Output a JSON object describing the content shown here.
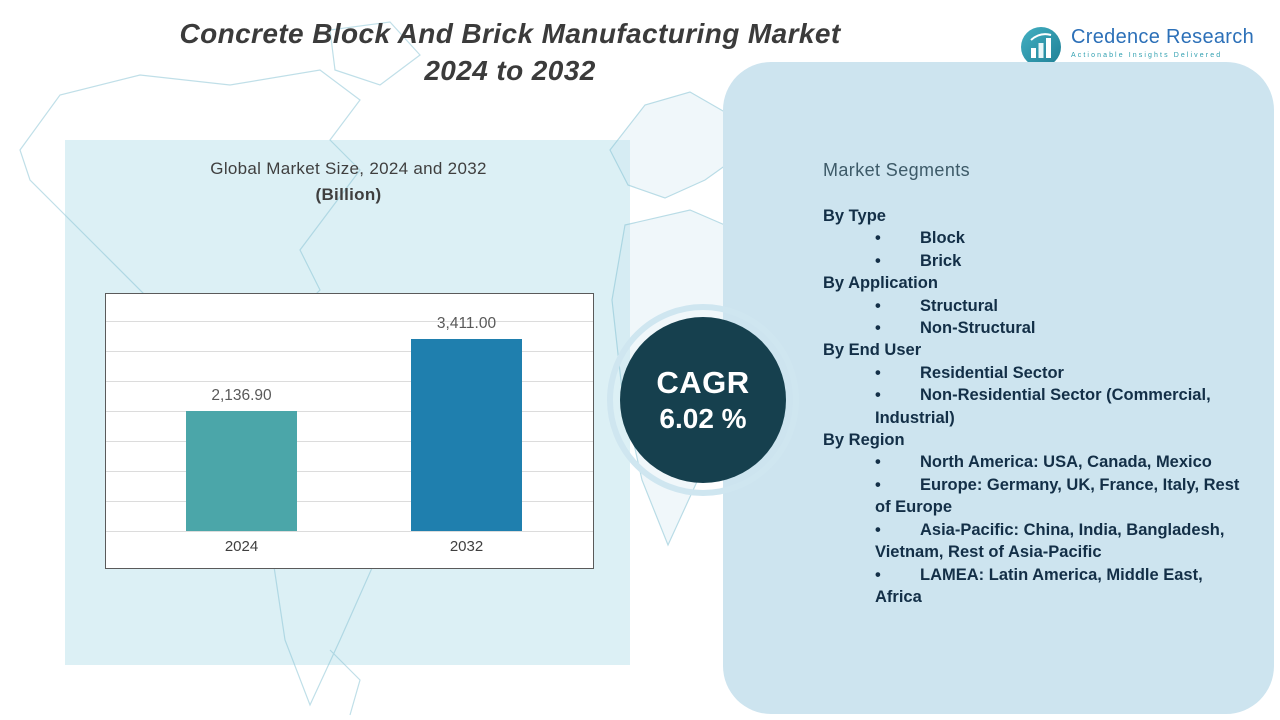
{
  "title": {
    "line1": "Concrete Block And Brick Manufacturing Market",
    "line2": "2024 to 2032"
  },
  "logo": {
    "name": "Credence Research",
    "tagline": "Actionable Insights Delivered"
  },
  "chart_header": {
    "line1": "Global Market Size, 2024 and 2032",
    "line2": "(Billion)"
  },
  "cagr": {
    "label": "CAGR",
    "value": "6.02 %"
  },
  "segments": {
    "heading": "Market Segments",
    "groups": [
      {
        "label": "By Type",
        "items": [
          "Block",
          "Brick"
        ]
      },
      {
        "label": "By Application",
        "items": [
          "Structural",
          "Non-Structural"
        ]
      },
      {
        "label": "By End User",
        "items": [
          "Residential Sector",
          "Non-Residential Sector (Commercial, Industrial)"
        ]
      },
      {
        "label": "By Region",
        "items": [
          "North America: USA, Canada, Mexico",
          "Europe: Germany, UK, France, Italy, Rest of Europe",
          "Asia-Pacific: China, India, Bangladesh, Vietnam, Rest of Asia-Pacific",
          "LAMEA: Latin America, Middle East, Africa"
        ]
      }
    ]
  },
  "chart_data": {
    "type": "bar",
    "title": "Global Market Size, 2024 and 2032 (Billion)",
    "categories": [
      "2024",
      "2032"
    ],
    "values": [
      2136.9,
      3411.0
    ],
    "value_labels": [
      "2,136.90",
      "3,411.00"
    ],
    "unit": "Billion",
    "ylim": [
      0,
      3800
    ],
    "grid": true,
    "legend": false,
    "bar_colors": [
      "#4BA6A9",
      "#1F7FAE"
    ]
  },
  "colors": {
    "cagr_circle": "#16404E",
    "right_panel": "#CDE4EF",
    "left_backdrop": "#DCF0F5",
    "map_line": "#8CC5D6",
    "logo_blue": "#2C70B8",
    "logo_teal": "#2F9FB0"
  }
}
